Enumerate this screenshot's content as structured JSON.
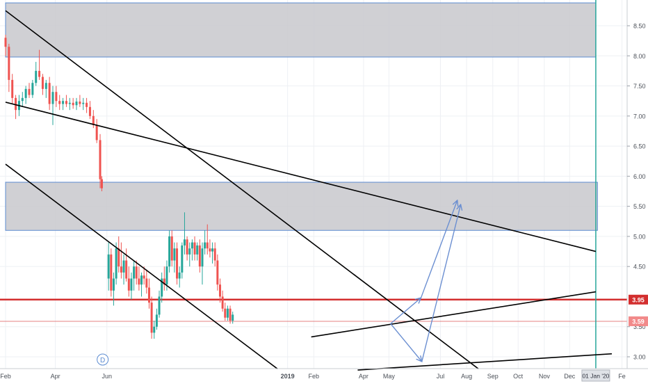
{
  "chart_data": {
    "type": "candlestick",
    "x_start": "2018-02-01",
    "x_end": "2020-02-03",
    "ylim": [
      2.8,
      8.95
    ],
    "grid": true,
    "price_axis": {
      "position": "right",
      "ticks": [
        "8.50",
        "8.00",
        "7.50",
        "7.00",
        "6.50",
        "6.00",
        "5.50",
        "5.00",
        "4.50",
        "3.50",
        "3.00"
      ]
    },
    "time_axis": {
      "ticks": [
        {
          "date": "2018-02-01",
          "label": "Feb"
        },
        {
          "date": "2018-04-01",
          "label": "Apr"
        },
        {
          "date": "2018-06-01",
          "label": "Jun"
        },
        {
          "date": "2019-01-01",
          "label": "2019"
        },
        {
          "date": "2019-02-01",
          "label": "Feb"
        },
        {
          "date": "2019-04-01",
          "label": "Apr"
        },
        {
          "date": "2019-05-01",
          "label": "May"
        },
        {
          "date": "2019-07-01",
          "label": "Jul"
        },
        {
          "date": "2019-08-01",
          "label": "Aug"
        },
        {
          "date": "2019-09-01",
          "label": "Sep"
        },
        {
          "date": "2019-10-01",
          "label": "Oct"
        },
        {
          "date": "2019-11-01",
          "label": "Nov"
        },
        {
          "date": "2019-12-01",
          "label": "Dec"
        },
        {
          "date": "2020-02-01",
          "label": "Fe"
        }
      ],
      "highlight": {
        "date": "2020-01-01",
        "label": "01 Jan '20"
      }
    },
    "colors": {
      "up": "#26a69a",
      "down": "#ef5350",
      "zone_fill": "#c8c8cc",
      "zone_edge": "#5b8bd1",
      "trendline": "#000000",
      "horizontal": "#d32f2f",
      "arrow": "#6b8fd1",
      "vertical_marker": "#26a69a"
    },
    "price_labels": [
      {
        "value": 3.95,
        "text": "3.95",
        "style": "solid"
      },
      {
        "value": 3.59,
        "text": "3.59",
        "style": "thin"
      }
    ],
    "marker": {
      "date": "2018-05-27",
      "text": "D"
    },
    "candles_ohlc": [
      [
        "2018-02-01",
        8.3,
        8.35,
        8.0,
        8.15
      ],
      [
        "2018-02-05",
        8.15,
        8.2,
        7.4,
        7.6
      ],
      [
        "2018-02-09",
        7.6,
        7.7,
        7.2,
        7.3
      ],
      [
        "2018-02-13",
        7.3,
        7.35,
        6.95,
        7.1
      ],
      [
        "2018-02-17",
        7.1,
        7.35,
        7.0,
        7.25
      ],
      [
        "2018-02-21",
        7.25,
        7.4,
        7.15,
        7.3
      ],
      [
        "2018-02-25",
        7.3,
        7.5,
        7.2,
        7.45
      ],
      [
        "2018-03-01",
        7.45,
        7.55,
        7.3,
        7.35
      ],
      [
        "2018-03-05",
        7.35,
        7.6,
        7.3,
        7.55
      ],
      [
        "2018-03-09",
        7.55,
        7.9,
        7.5,
        7.75
      ],
      [
        "2018-03-13",
        7.75,
        8.1,
        7.6,
        7.65
      ],
      [
        "2018-03-17",
        7.65,
        7.7,
        7.35,
        7.45
      ],
      [
        "2018-03-21",
        7.45,
        7.6,
        7.3,
        7.55
      ],
      [
        "2018-03-25",
        7.55,
        7.65,
        7.1,
        7.2
      ],
      [
        "2018-03-29",
        7.2,
        7.5,
        6.85,
        7.4
      ],
      [
        "2018-04-02",
        7.4,
        7.5,
        7.15,
        7.25
      ],
      [
        "2018-04-06",
        7.25,
        7.35,
        7.1,
        7.2
      ],
      [
        "2018-04-10",
        7.2,
        7.3,
        7.1,
        7.25
      ],
      [
        "2018-04-14",
        7.25,
        7.35,
        7.15,
        7.2
      ],
      [
        "2018-04-18",
        7.2,
        7.3,
        7.1,
        7.22
      ],
      [
        "2018-04-22",
        7.22,
        7.3,
        7.12,
        7.18
      ],
      [
        "2018-04-26",
        7.18,
        7.3,
        7.1,
        7.24
      ],
      [
        "2018-04-30",
        7.24,
        7.35,
        7.15,
        7.2
      ],
      [
        "2018-05-04",
        7.2,
        7.3,
        7.1,
        7.22
      ],
      [
        "2018-05-08",
        7.22,
        7.3,
        7.05,
        7.15
      ],
      [
        "2018-05-12",
        7.15,
        7.25,
        6.95,
        7.0
      ],
      [
        "2018-05-16",
        7.0,
        7.1,
        6.8,
        6.85
      ],
      [
        "2018-05-20",
        6.85,
        6.95,
        6.55,
        6.6
      ],
      [
        "2018-05-24",
        6.6,
        6.7,
        5.8,
        5.95
      ],
      [
        "2018-05-26",
        5.95,
        6.0,
        5.75,
        5.8
      ],
      [
        "2018-06-03",
        4.3,
        4.9,
        4.1,
        4.7
      ],
      [
        "2018-06-06",
        4.7,
        4.8,
        4.0,
        4.1
      ],
      [
        "2018-06-09",
        4.1,
        4.4,
        3.85,
        4.3
      ],
      [
        "2018-06-12",
        4.3,
        4.9,
        4.2,
        4.8
      ],
      [
        "2018-06-15",
        4.8,
        5.0,
        4.4,
        4.5
      ],
      [
        "2018-06-18",
        4.5,
        4.9,
        4.3,
        4.4
      ],
      [
        "2018-06-21",
        4.4,
        4.7,
        4.2,
        4.6
      ],
      [
        "2018-06-24",
        4.6,
        4.8,
        4.25,
        4.3
      ],
      [
        "2018-06-27",
        4.3,
        4.5,
        4.0,
        4.1
      ],
      [
        "2018-06-30",
        4.1,
        4.4,
        3.95,
        4.3
      ],
      [
        "2018-07-03",
        4.3,
        4.6,
        4.1,
        4.5
      ],
      [
        "2018-07-06",
        4.5,
        4.6,
        4.2,
        4.3
      ],
      [
        "2018-07-09",
        4.3,
        4.5,
        4.1,
        4.2
      ],
      [
        "2018-07-12",
        4.2,
        4.4,
        4.0,
        4.35
      ],
      [
        "2018-07-15",
        4.35,
        4.5,
        4.2,
        4.3
      ],
      [
        "2018-07-18",
        4.3,
        4.45,
        4.05,
        4.15
      ],
      [
        "2018-07-21",
        4.15,
        4.3,
        3.8,
        3.9
      ],
      [
        "2018-07-24",
        3.9,
        4.0,
        3.3,
        3.4
      ],
      [
        "2018-07-27",
        3.4,
        3.6,
        3.3,
        3.5
      ],
      [
        "2018-07-30",
        3.5,
        3.8,
        3.45,
        3.7
      ],
      [
        "2018-08-02",
        3.7,
        4.1,
        3.65,
        4.0
      ],
      [
        "2018-08-05",
        4.0,
        4.4,
        3.9,
        4.3
      ],
      [
        "2018-08-08",
        4.3,
        4.5,
        4.1,
        4.2
      ],
      [
        "2018-08-11",
        4.2,
        4.6,
        4.1,
        4.5
      ],
      [
        "2018-08-14",
        4.5,
        5.1,
        4.4,
        5.0
      ],
      [
        "2018-08-17",
        5.0,
        5.1,
        4.5,
        4.6
      ],
      [
        "2018-08-20",
        4.6,
        4.9,
        4.4,
        4.8
      ],
      [
        "2018-08-23",
        4.8,
        4.9,
        4.2,
        4.3
      ],
      [
        "2018-08-26",
        4.3,
        4.5,
        4.15,
        4.4
      ],
      [
        "2018-08-29",
        4.4,
        4.9,
        4.3,
        4.85
      ],
      [
        "2018-09-01",
        4.85,
        5.4,
        4.7,
        4.95
      ],
      [
        "2018-09-04",
        4.95,
        5.0,
        4.6,
        4.7
      ],
      [
        "2018-09-07",
        4.7,
        4.9,
        4.5,
        4.8
      ],
      [
        "2018-09-10",
        4.8,
        4.95,
        4.6,
        4.9
      ],
      [
        "2018-09-13",
        4.9,
        5.0,
        4.6,
        4.7
      ],
      [
        "2018-09-16",
        4.7,
        4.9,
        4.6,
        4.85
      ],
      [
        "2018-09-19",
        4.85,
        4.95,
        4.4,
        4.5
      ],
      [
        "2018-09-22",
        4.5,
        4.9,
        4.2,
        4.8
      ],
      [
        "2018-09-25",
        4.8,
        5.1,
        4.7,
        4.9
      ],
      [
        "2018-09-28",
        4.9,
        5.2,
        4.7,
        4.8
      ],
      [
        "2018-10-01",
        4.8,
        4.95,
        4.65,
        4.75
      ],
      [
        "2018-10-04",
        4.75,
        4.9,
        4.55,
        4.8
      ],
      [
        "2018-10-07",
        4.8,
        4.9,
        4.5,
        4.6
      ],
      [
        "2018-10-10",
        4.6,
        4.7,
        4.1,
        4.2
      ],
      [
        "2018-10-13",
        4.2,
        4.3,
        3.9,
        4.0
      ],
      [
        "2018-10-16",
        4.0,
        4.1,
        3.75,
        3.8
      ],
      [
        "2018-10-19",
        3.8,
        3.9,
        3.6,
        3.65
      ],
      [
        "2018-10-22",
        3.65,
        3.85,
        3.6,
        3.8
      ],
      [
        "2018-10-25",
        3.8,
        3.85,
        3.55,
        3.6
      ],
      [
        "2018-10-28",
        3.6,
        3.75,
        3.55,
        3.7
      ]
    ],
    "trendlines": [
      {
        "from": [
          "2018-02-01",
          8.75
        ],
        "to": [
          "2019-08-15",
          2.8
        ]
      },
      {
        "from": [
          "2018-02-01",
          6.2
        ],
        "to": [
          "2018-12-20",
          2.8
        ]
      },
      {
        "from": [
          "2018-02-01",
          7.23
        ],
        "to": [
          "2020-01-01",
          4.75
        ]
      },
      {
        "from": [
          "2019-01-29",
          3.33
        ],
        "to": [
          "2020-01-01",
          4.08
        ]
      },
      {
        "from": [
          "2019-03-25",
          2.78
        ],
        "to": [
          "2020-01-20",
          3.05
        ]
      }
    ],
    "horizontal_lines": [
      3.95,
      3.59
    ],
    "zones": [
      {
        "x1": "2018-02-01",
        "x2": "2020-01-01",
        "y1": 7.98,
        "y2": 8.88
      },
      {
        "x1": "2018-02-01",
        "x2": "2020-01-03",
        "y1": 5.1,
        "y2": 5.9
      }
    ],
    "arrows": [
      {
        "from": [
          "2019-05-03",
          3.55
        ],
        "to": [
          "2019-06-08",
          3.98
        ]
      },
      {
        "from": [
          "2019-06-08",
          3.98
        ],
        "to": [
          "2019-07-21",
          5.6
        ]
      },
      {
        "from": [
          "2019-05-03",
          3.55
        ],
        "to": [
          "2019-06-09",
          2.92
        ]
      },
      {
        "from": [
          "2019-06-09",
          2.92
        ],
        "to": [
          "2019-07-25",
          5.53
        ]
      }
    ]
  }
}
